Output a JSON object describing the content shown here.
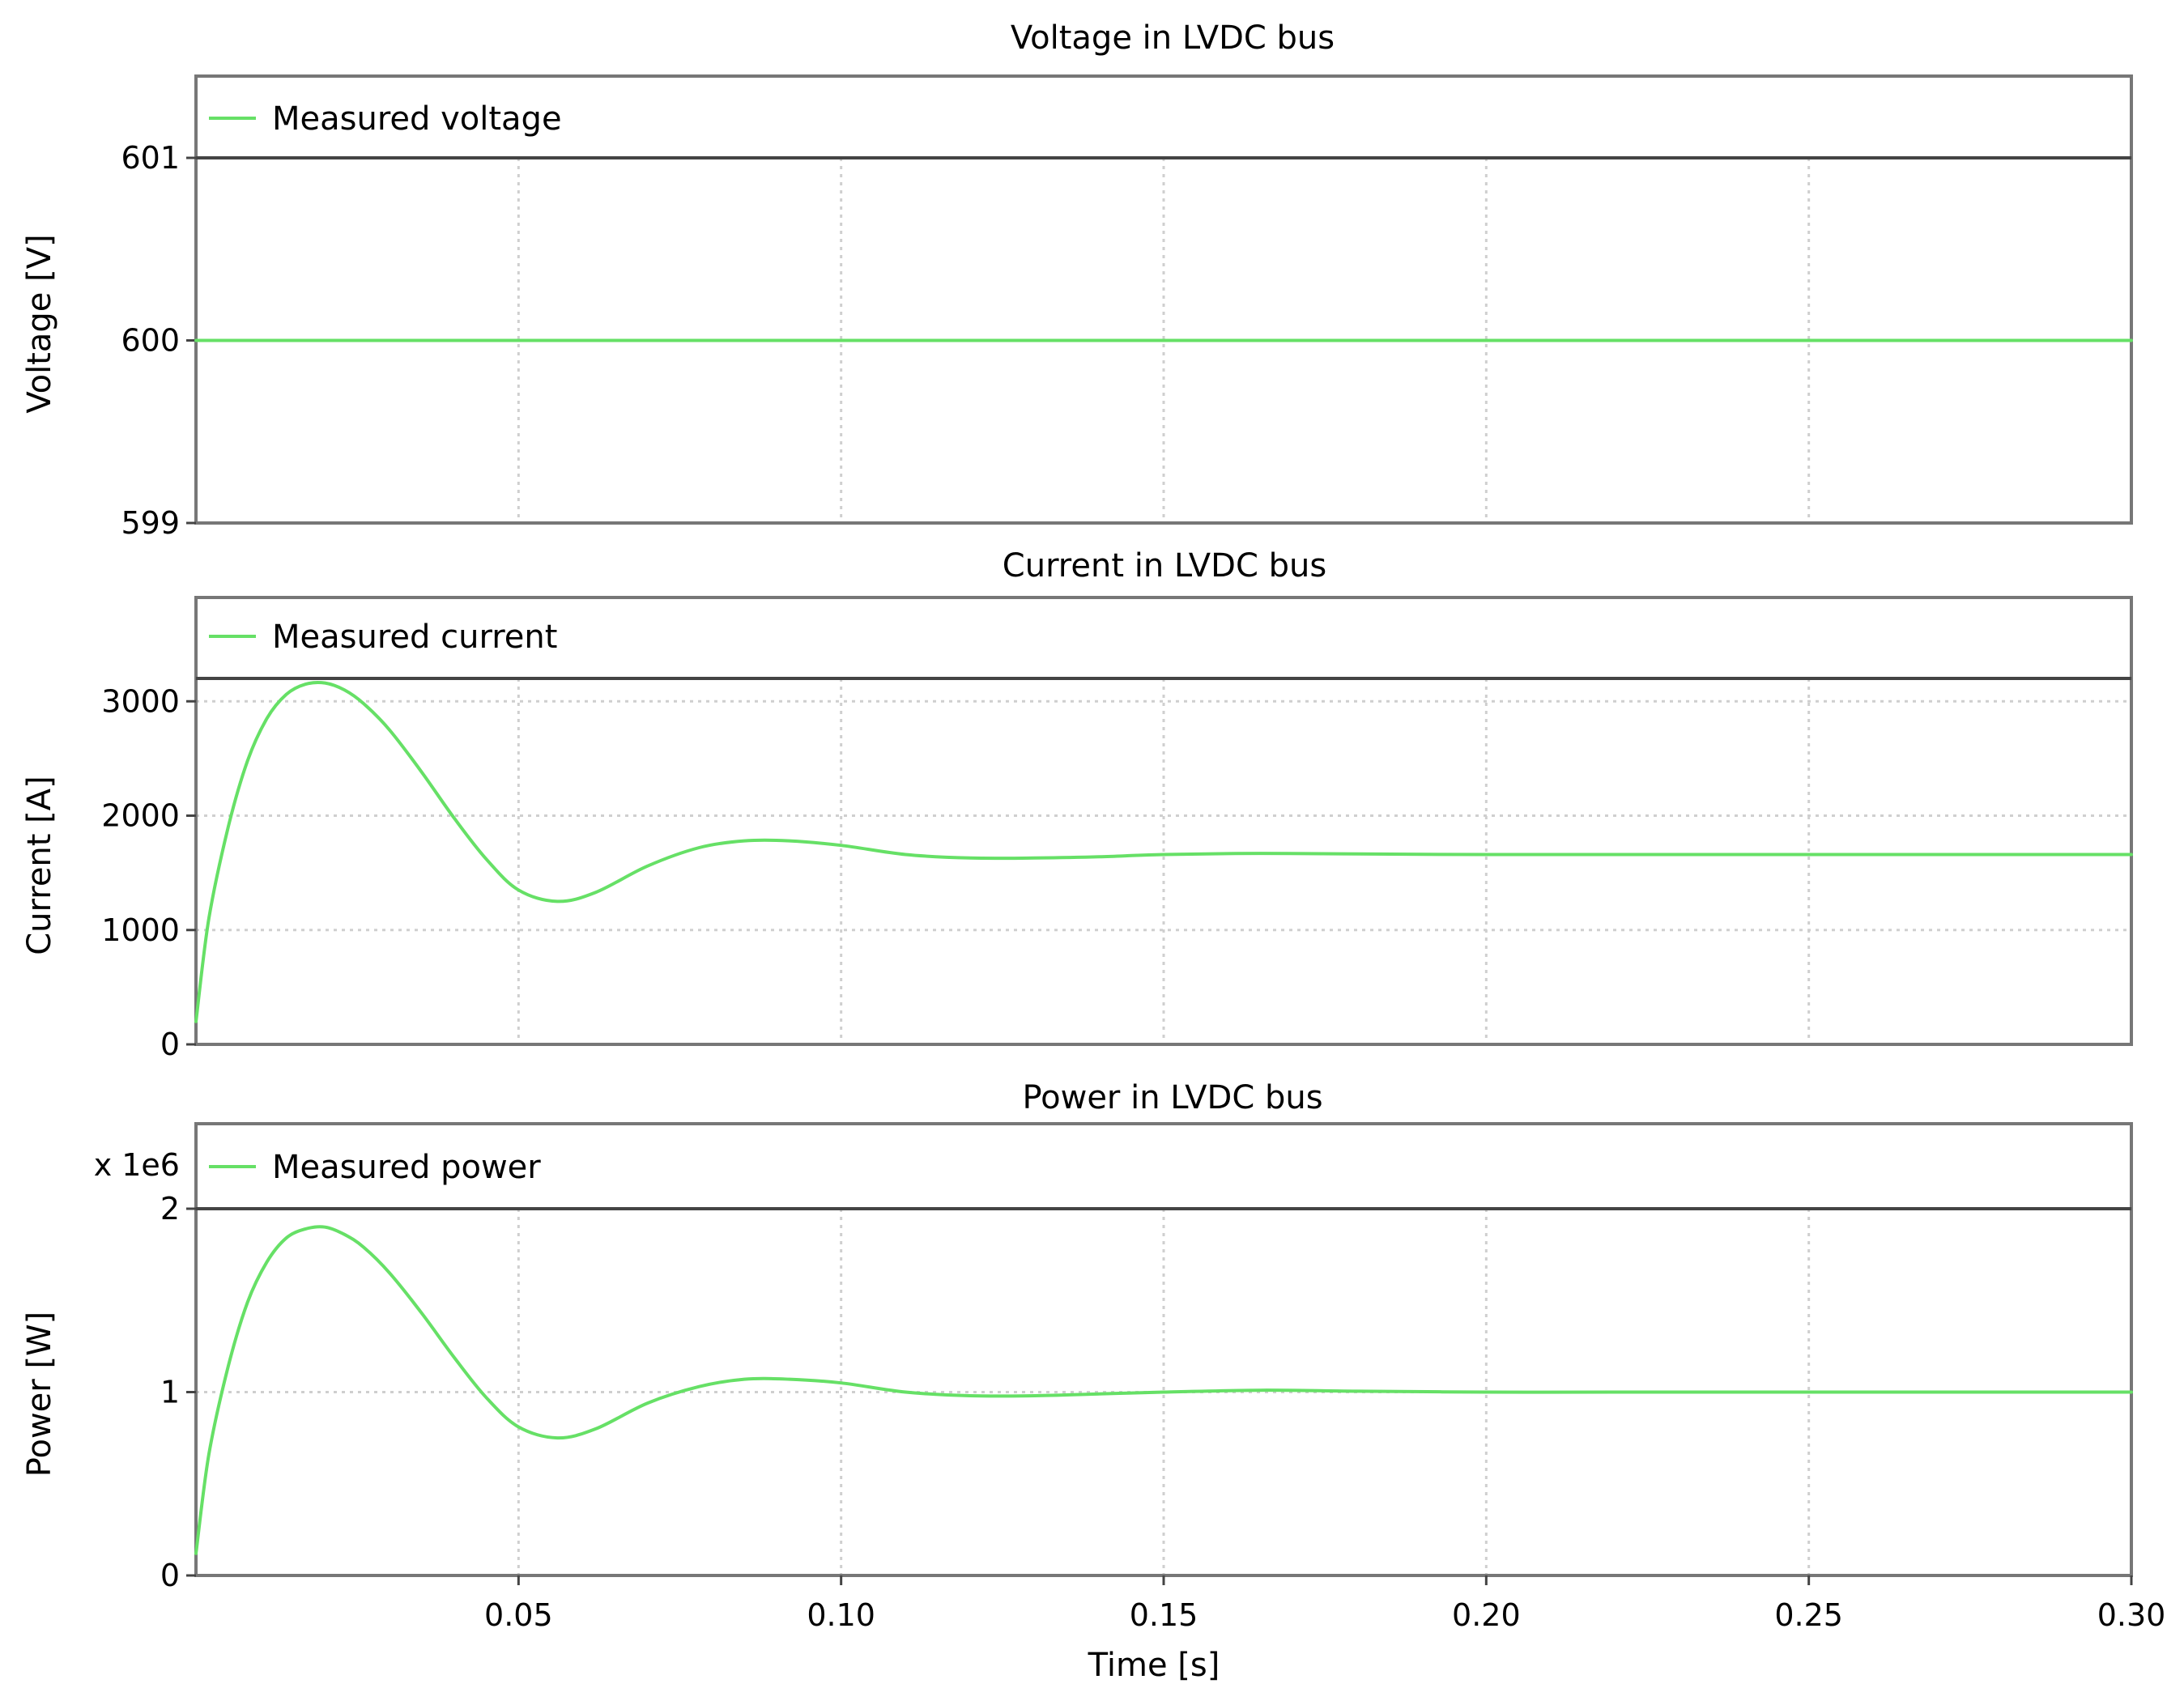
{
  "chart_data": [
    {
      "type": "line",
      "title": "Voltage in LVDC bus",
      "ylabel": "Voltage [V]",
      "xlim": [
        0,
        0.3
      ],
      "ylim": [
        599,
        601
      ],
      "yticks": [
        "599",
        "600",
        "601"
      ],
      "grid": true,
      "legend_position": "top-left",
      "series": [
        {
          "name": "Measured voltage",
          "color": "#66e066",
          "x": [
            0,
            0.05,
            0.1,
            0.15,
            0.2,
            0.25,
            0.3
          ],
          "y": [
            600,
            600,
            600,
            600,
            600,
            600,
            600
          ]
        }
      ]
    },
    {
      "type": "line",
      "title": "Current in LVDC bus",
      "ylabel": "Current [A]",
      "xlim": [
        0,
        0.3
      ],
      "ylim": [
        0,
        3200
      ],
      "yticks": [
        "0",
        "1000",
        "2000",
        "3000"
      ],
      "grid": true,
      "legend_position": "top-left",
      "series": [
        {
          "name": "Measured current",
          "color": "#66e066",
          "x": [
            0,
            0.002,
            0.005,
            0.008,
            0.011,
            0.014,
            0.017,
            0.02,
            0.023,
            0.026,
            0.03,
            0.035,
            0.04,
            0.045,
            0.05,
            0.056,
            0.062,
            0.07,
            0.078,
            0.085,
            0.092,
            0.1,
            0.11,
            0.12,
            0.13,
            0.14,
            0.15,
            0.165,
            0.18,
            0.2,
            0.22,
            0.25,
            0.28,
            0.3
          ],
          "y": [
            200,
            1100,
            1900,
            2480,
            2850,
            3060,
            3150,
            3160,
            3100,
            2980,
            2750,
            2380,
            1980,
            1620,
            1350,
            1250,
            1330,
            1560,
            1720,
            1780,
            1780,
            1740,
            1660,
            1630,
            1630,
            1640,
            1660,
            1670,
            1665,
            1660,
            1660,
            1660,
            1660,
            1660
          ]
        }
      ]
    },
    {
      "type": "line",
      "title": "Power in LVDC bus",
      "ylabel": "Power [W]",
      "xlabel": "Time [s]",
      "xlim": [
        0,
        0.3
      ],
      "ylim": [
        0,
        2
      ],
      "yticks": [
        "0",
        "1",
        "2"
      ],
      "y_multiplier": "x 1e6",
      "xticks": [
        "0.05",
        "0.10",
        "0.15",
        "0.20",
        "0.25",
        "0.30"
      ],
      "grid": true,
      "legend_position": "top-left",
      "series": [
        {
          "name": "Measured power",
          "color": "#66e066",
          "x": [
            0,
            0.002,
            0.005,
            0.008,
            0.011,
            0.014,
            0.017,
            0.02,
            0.023,
            0.026,
            0.03,
            0.035,
            0.04,
            0.045,
            0.05,
            0.056,
            0.062,
            0.07,
            0.078,
            0.085,
            0.092,
            0.1,
            0.11,
            0.12,
            0.13,
            0.14,
            0.15,
            0.165,
            0.18,
            0.2,
            0.22,
            0.25,
            0.28,
            0.3
          ],
          "y": [
            0.12,
            0.66,
            1.14,
            1.49,
            1.71,
            1.84,
            1.89,
            1.9,
            1.86,
            1.79,
            1.65,
            1.43,
            1.19,
            0.97,
            0.81,
            0.75,
            0.8,
            0.94,
            1.03,
            1.07,
            1.07,
            1.05,
            1.0,
            0.98,
            0.98,
            0.99,
            1.0,
            1.01,
            1.005,
            1.0,
            1.0,
            1.0,
            1.0,
            1.0
          ]
        }
      ]
    }
  ]
}
